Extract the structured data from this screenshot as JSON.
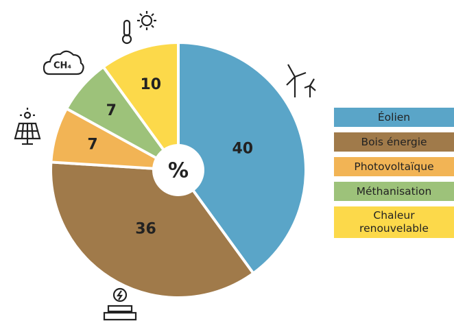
{
  "chart_data": {
    "type": "pie",
    "center_label": "%",
    "methane_icon_label": "CH₄",
    "categories": [
      "Éolien",
      "Bois énergie",
      "Photovoltaïque",
      "Méthanisation",
      "Chaleur renouvelable"
    ],
    "values": [
      40,
      36,
      7,
      7,
      10
    ],
    "colors": [
      "#5aa5c8",
      "#a07a4a",
      "#f2b455",
      "#9dc27a",
      "#fcd94a"
    ],
    "legend": "right"
  }
}
